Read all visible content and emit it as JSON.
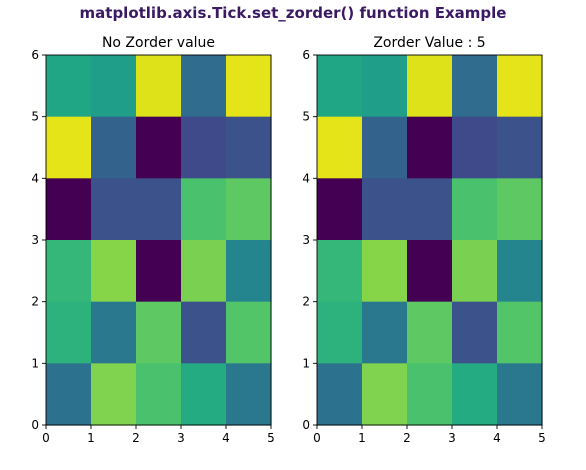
{
  "figure": {
    "suptitle": "matplotlib.axis.Tick.set_zorder() function Example",
    "suptitle_color": "#3b1a63",
    "colormap": "viridis"
  },
  "chart_data": [
    {
      "type": "heatmap",
      "title": "No Zorder value",
      "xlabel": "",
      "ylabel": "",
      "xlim": [
        0,
        5
      ],
      "ylim": [
        0,
        6
      ],
      "xticks": [
        "0",
        "1",
        "2",
        "3",
        "4",
        "5"
      ],
      "yticks": [
        "0",
        "1",
        "2",
        "3",
        "4",
        "5",
        "6"
      ],
      "grid": false,
      "rows_top_to_bottom": [
        [
          "#21a685",
          "#1f9e89",
          "#dde318",
          "#2f6c8e",
          "#e5e419"
        ],
        [
          "#e5e419",
          "#33638d",
          "#440154",
          "#3e4a89",
          "#3b528b"
        ],
        [
          "#440154",
          "#3b528b",
          "#3b528b",
          "#4ac16d",
          "#5ec962"
        ],
        [
          "#35b779",
          "#86d549",
          "#440154",
          "#7ad151",
          "#25858e"
        ],
        [
          "#2db27d",
          "#2a788e",
          "#5ec962",
          "#3b528b",
          "#52c569"
        ],
        [
          "#2c728e",
          "#7fd34e",
          "#4ac16d",
          "#25ab82",
          "#2a788e"
        ]
      ]
    },
    {
      "type": "heatmap",
      "title": "Zorder Value : 5",
      "xlabel": "",
      "ylabel": "",
      "xlim": [
        0,
        5
      ],
      "ylim": [
        0,
        6
      ],
      "xticks": [
        "0",
        "1",
        "2",
        "3",
        "4",
        "5"
      ],
      "yticks": [
        "0",
        "1",
        "2",
        "3",
        "4",
        "5",
        "6"
      ],
      "grid": false,
      "rows_top_to_bottom": [
        [
          "#21a685",
          "#1f9e89",
          "#dde318",
          "#2f6c8e",
          "#e5e419"
        ],
        [
          "#e5e419",
          "#33638d",
          "#440154",
          "#3e4a89",
          "#3b528b"
        ],
        [
          "#440154",
          "#3b528b",
          "#3b528b",
          "#4ac16d",
          "#5ec962"
        ],
        [
          "#35b779",
          "#86d549",
          "#440154",
          "#7ad151",
          "#25858e"
        ],
        [
          "#2db27d",
          "#2a788e",
          "#5ec962",
          "#3b528b",
          "#52c569"
        ],
        [
          "#2c728e",
          "#7fd34e",
          "#4ac16d",
          "#25ab82",
          "#2a788e"
        ]
      ]
    }
  ]
}
